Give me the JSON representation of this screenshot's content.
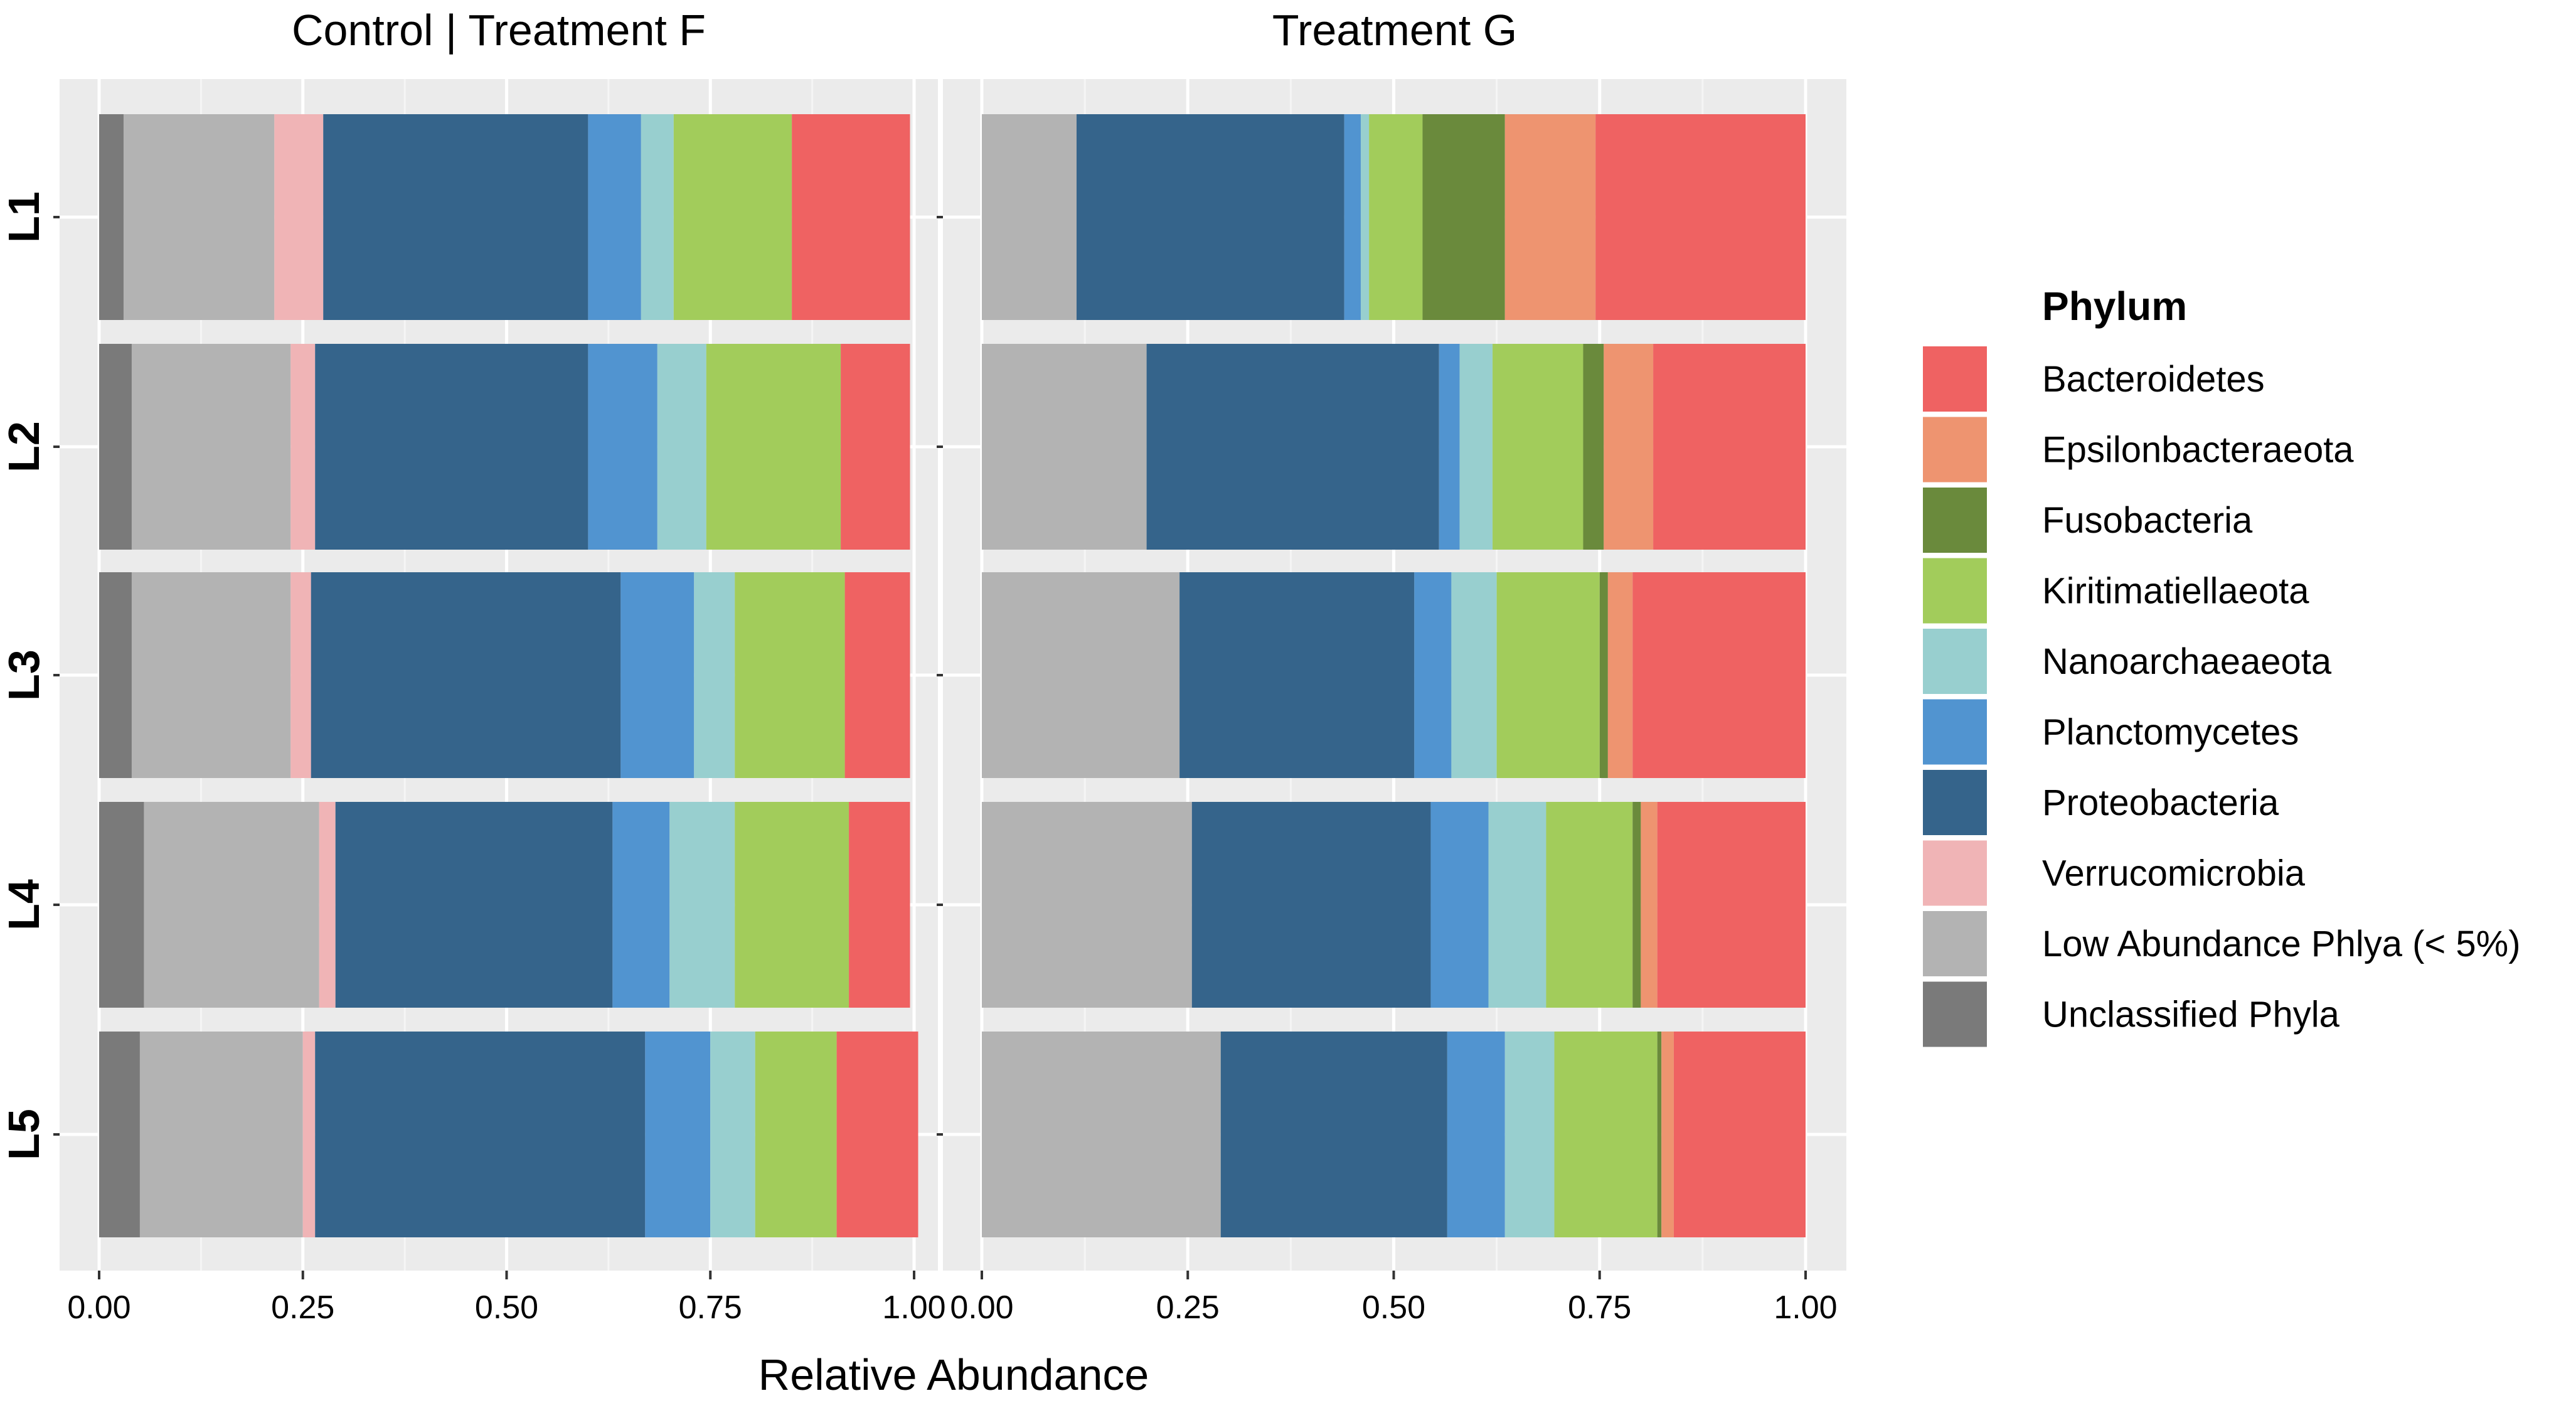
{
  "chart_data": {
    "type": "bar",
    "orientation": "horizontal",
    "stacked": true,
    "xlabel": "Relative Abundance",
    "ylabel": "",
    "xlim": [
      0,
      1
    ],
    "x_ticks": [
      "0.00",
      "0.25",
      "0.50",
      "0.75",
      "1.00"
    ],
    "x_tick_values": [
      0,
      0.25,
      0.5,
      0.75,
      1.0
    ],
    "categories": [
      "L1",
      "L2",
      "L3",
      "L4",
      "L5"
    ],
    "grid": true,
    "legend": {
      "title": "Phylum",
      "placement": "right",
      "entries": [
        {
          "name": "Bacteroidetes",
          "color": "#EF6262"
        },
        {
          "name": "Epsilonbacteraeota",
          "color": "#EE9470"
        },
        {
          "name": "Fusobacteria",
          "color": "#6A8A3C"
        },
        {
          "name": "Kiritimatiellaeota",
          "color": "#A2CC5B"
        },
        {
          "name": "Nanoarchaeaeota",
          "color": "#98CFCF"
        },
        {
          "name": "Planctomycetes",
          "color": "#5194D0"
        },
        {
          "name": "Proteobacteria",
          "color": "#35648B"
        },
        {
          "name": "Verrucomicrobia",
          "color": "#F0B4B6"
        },
        {
          "name": "Low Abundance Phlya (< 5%)",
          "color": "#B3B3B3"
        },
        {
          "name": "Unclassified Phyla",
          "color": "#7A7A7A"
        }
      ]
    },
    "stack_order": [
      "Unclassified Phyla",
      "Low Abundance Phlya (< 5%)",
      "Verrucomicrobia",
      "Proteobacteria",
      "Planctomycetes",
      "Nanoarchaeaeota",
      "Kiritimatiellaeota",
      "Fusobacteria",
      "Epsilonbacteraeota",
      "Bacteroidetes"
    ],
    "panels": [
      {
        "title": "Control | Treatment F",
        "series": [
          {
            "name": "Unclassified Phyla",
            "values": [
              0.03,
              0.04,
              0.04,
              0.055,
              0.05
            ]
          },
          {
            "name": "Low Abundance Phlya (< 5%)",
            "values": [
              0.185,
              0.195,
              0.195,
              0.215,
              0.2
            ]
          },
          {
            "name": "Verrucomicrobia",
            "values": [
              0.06,
              0.03,
              0.025,
              0.02,
              0.015
            ]
          },
          {
            "name": "Proteobacteria",
            "values": [
              0.325,
              0.335,
              0.38,
              0.34,
              0.405
            ]
          },
          {
            "name": "Planctomycetes",
            "values": [
              0.065,
              0.085,
              0.09,
              0.07,
              0.08
            ]
          },
          {
            "name": "Nanoarchaeaeota",
            "values": [
              0.04,
              0.06,
              0.05,
              0.08,
              0.055
            ]
          },
          {
            "name": "Kiritimatiellaeota",
            "values": [
              0.145,
              0.165,
              0.135,
              0.14,
              0.1
            ]
          },
          {
            "name": "Fusobacteria",
            "values": [
              0,
              0,
              0,
              0,
              0
            ]
          },
          {
            "name": "Epsilonbacteraeota",
            "values": [
              0,
              0,
              0,
              0,
              0
            ]
          },
          {
            "name": "Bacteroidetes",
            "values": [
              0.145,
              0.085,
              0.08,
              0.075,
              0.1
            ]
          }
        ]
      },
      {
        "title": "Treatment G",
        "series": [
          {
            "name": "Unclassified Phyla",
            "values": [
              0,
              0,
              0,
              0,
              0
            ]
          },
          {
            "name": "Low Abundance Phlya (< 5%)",
            "values": [
              0.115,
              0.2,
              0.24,
              0.255,
              0.29
            ]
          },
          {
            "name": "Verrucomicrobia",
            "values": [
              0,
              0,
              0,
              0,
              0
            ]
          },
          {
            "name": "Proteobacteria",
            "values": [
              0.325,
              0.355,
              0.285,
              0.29,
              0.275
            ]
          },
          {
            "name": "Planctomycetes",
            "values": [
              0.02,
              0.025,
              0.045,
              0.07,
              0.07
            ]
          },
          {
            "name": "Nanoarchaeaeota",
            "values": [
              0.01,
              0.04,
              0.055,
              0.07,
              0.06
            ]
          },
          {
            "name": "Kiritimatiellaeota",
            "values": [
              0.065,
              0.11,
              0.125,
              0.105,
              0.125
            ]
          },
          {
            "name": "Fusobacteria",
            "values": [
              0.1,
              0.025,
              0.01,
              0.01,
              0.005
            ]
          },
          {
            "name": "Epsilonbacteraeota",
            "values": [
              0.11,
              0.06,
              0.03,
              0.02,
              0.015
            ]
          },
          {
            "name": "Bacteroidetes",
            "values": [
              0.255,
              0.185,
              0.21,
              0.18,
              0.16
            ]
          }
        ]
      }
    ]
  }
}
